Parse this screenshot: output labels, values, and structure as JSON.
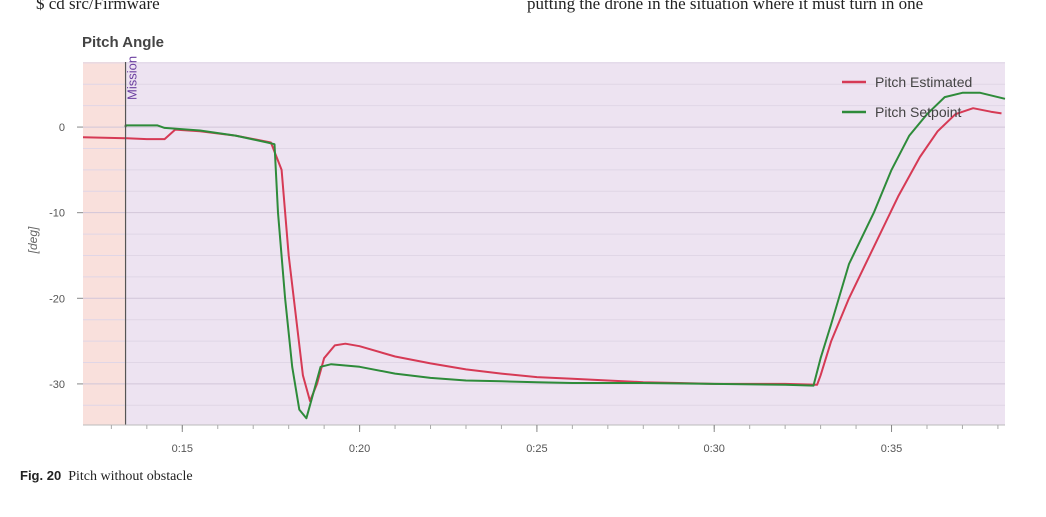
{
  "page_text": {
    "top_left": "$ cd src/Firmware",
    "top_right": "putting the drone in the situation where it must turn in one"
  },
  "caption": {
    "label": "Fig. 20",
    "text": "Pitch without obstacle"
  },
  "chart_data": {
    "type": "line",
    "title": "Pitch Angle",
    "ylabel": "[deg]",
    "xlabel": "",
    "x_unit": "seconds",
    "xlim": [
      12.2,
      38.2
    ],
    "ylim": [
      -34.8,
      7.6
    ],
    "x_ticks": [
      {
        "value": 15,
        "label": "0:15"
      },
      {
        "value": 20,
        "label": "0:20"
      },
      {
        "value": 25,
        "label": "0:25"
      },
      {
        "value": 30,
        "label": "0:30"
      },
      {
        "value": 35,
        "label": "0:35"
      }
    ],
    "y_ticks": [
      0,
      -10,
      -20,
      -30
    ],
    "grid": true,
    "legend": "top-right",
    "annotations": [
      {
        "type": "vertical-marker",
        "x": 13.4,
        "label": "Mission"
      }
    ],
    "background_regions": [
      {
        "from": 12.2,
        "to": 13.4,
        "color": "#f9e0dc"
      },
      {
        "from": 13.4,
        "to": 38.2,
        "color": "#ede3f1"
      }
    ],
    "series": [
      {
        "name": "Pitch Estimated",
        "color": "#d63a55",
        "points": [
          [
            12.2,
            -1.2
          ],
          [
            13.4,
            -1.3
          ],
          [
            14.0,
            -1.4
          ],
          [
            14.5,
            -1.4
          ],
          [
            14.8,
            -0.3
          ],
          [
            15.5,
            -0.5
          ],
          [
            16.5,
            -1.0
          ],
          [
            17.5,
            -1.8
          ],
          [
            17.8,
            -5
          ],
          [
            18.0,
            -15
          ],
          [
            18.2,
            -22
          ],
          [
            18.4,
            -29
          ],
          [
            18.6,
            -32
          ],
          [
            18.8,
            -30
          ],
          [
            19.0,
            -27
          ],
          [
            19.3,
            -25.5
          ],
          [
            19.6,
            -25.3
          ],
          [
            20.0,
            -25.6
          ],
          [
            21.0,
            -26.8
          ],
          [
            22.0,
            -27.6
          ],
          [
            23.0,
            -28.3
          ],
          [
            24.0,
            -28.8
          ],
          [
            25.0,
            -29.2
          ],
          [
            26.0,
            -29.4
          ],
          [
            27.0,
            -29.6
          ],
          [
            28.0,
            -29.8
          ],
          [
            29.0,
            -29.9
          ],
          [
            30.0,
            -30.0
          ],
          [
            31.0,
            -30.0
          ],
          [
            32.0,
            -30.0
          ],
          [
            32.9,
            -30.1
          ],
          [
            33.0,
            -29
          ],
          [
            33.3,
            -25
          ],
          [
            33.8,
            -20
          ],
          [
            34.5,
            -14
          ],
          [
            35.2,
            -8
          ],
          [
            35.8,
            -3.5
          ],
          [
            36.3,
            -0.5
          ],
          [
            36.8,
            1.5
          ],
          [
            37.3,
            2.2
          ],
          [
            37.8,
            1.8
          ],
          [
            38.1,
            1.6
          ]
        ]
      },
      {
        "name": "Pitch Setpoint",
        "color": "#2e8b3a",
        "points": [
          [
            13.4,
            0
          ],
          [
            13.4,
            0.2
          ],
          [
            14.3,
            0.2
          ],
          [
            14.5,
            -0.1
          ],
          [
            15.5,
            -0.4
          ],
          [
            16.5,
            -1.0
          ],
          [
            17.4,
            -1.8
          ],
          [
            17.6,
            -2
          ],
          [
            17.7,
            -10
          ],
          [
            17.9,
            -20
          ],
          [
            18.1,
            -28
          ],
          [
            18.3,
            -33
          ],
          [
            18.5,
            -34
          ],
          [
            18.7,
            -31
          ],
          [
            18.9,
            -28
          ],
          [
            19.2,
            -27.7
          ],
          [
            20.0,
            -28.0
          ],
          [
            21.0,
            -28.8
          ],
          [
            22.0,
            -29.3
          ],
          [
            23.0,
            -29.6
          ],
          [
            24.0,
            -29.7
          ],
          [
            25.0,
            -29.8
          ],
          [
            26.0,
            -29.9
          ],
          [
            28.0,
            -29.9
          ],
          [
            30.0,
            -30.0
          ],
          [
            32.0,
            -30.1
          ],
          [
            32.8,
            -30.2
          ],
          [
            33.0,
            -27
          ],
          [
            33.3,
            -23
          ],
          [
            33.8,
            -16
          ],
          [
            34.5,
            -10
          ],
          [
            35.0,
            -5
          ],
          [
            35.5,
            -1
          ],
          [
            36.0,
            1.5
          ],
          [
            36.5,
            3.5
          ],
          [
            37.0,
            4.0
          ],
          [
            37.5,
            4.0
          ],
          [
            38.2,
            3.3
          ]
        ]
      }
    ]
  }
}
